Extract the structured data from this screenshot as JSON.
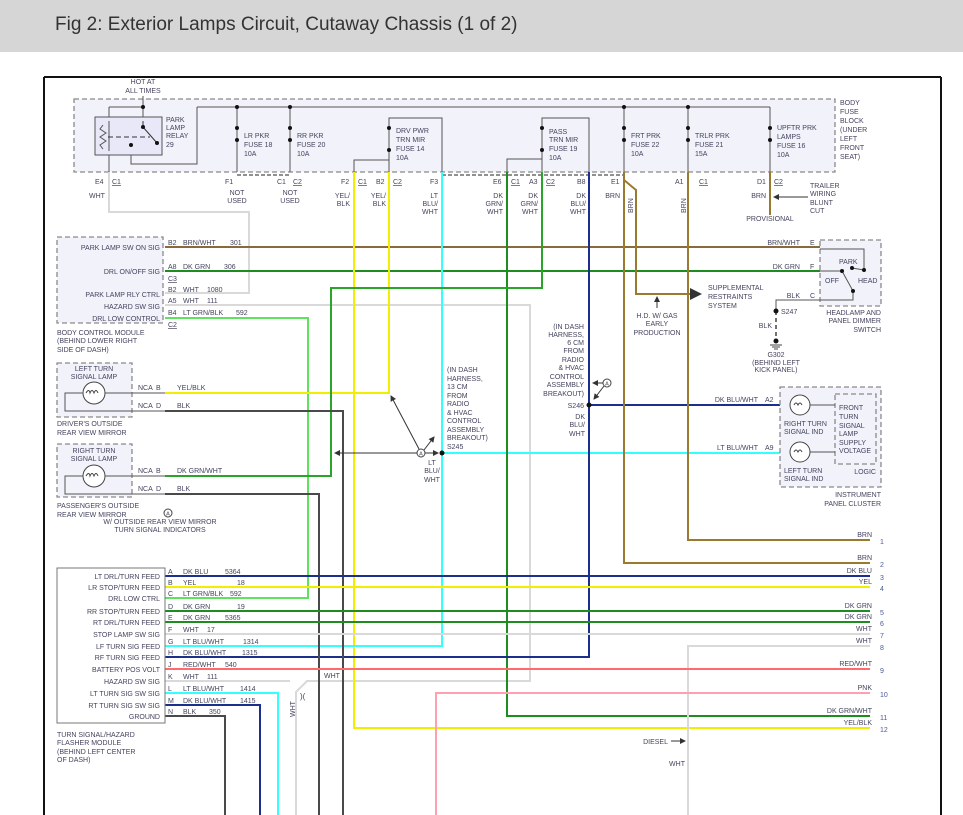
{
  "header": {
    "title": "Fig 2: Exterior Lamps Circuit, Cutaway Chassis (1 of 2)"
  },
  "colors": {
    "wht": "#d9d9d9",
    "yel": "#f2ee00",
    "lt_blu": "#33ffff",
    "dk_grn": "#1e8c1e",
    "lt_grn": "#5ee35e",
    "dk_blu": "#1c2f8c",
    "brn": "#9a7a2e",
    "brn_wht": "#8a6a3a",
    "blk": "#4a4a4a",
    "red_wht": "#ff6a6a",
    "pnk": "#ff9fb0"
  },
  "fuse_block": {
    "hot": [
      "HOT AT",
      "ALL TIMES"
    ],
    "name": [
      "BODY",
      "FUSE",
      "BLOCK",
      "(UNDER",
      "LEFT",
      "FRONT",
      "SEAT)"
    ],
    "relay": [
      "PARK",
      "LAMP",
      "RELAY",
      "29"
    ],
    "fuses": [
      [
        "LR PKR",
        "FUSE 18",
        "10A"
      ],
      [
        "RR PKR",
        "FUSE 20",
        "10A"
      ],
      [
        "DRV PWR",
        "TRN MIR",
        "FUSE 14",
        "10A"
      ],
      [
        "PASS",
        "TRN MIR",
        "FUSE 19",
        "10A"
      ],
      [
        "FRT PRK",
        "FUSE 22",
        "10A"
      ],
      [
        "TRLR PRK",
        "FUSE 21",
        "15A"
      ],
      [
        "UPFTR PRK",
        "LAMPS",
        "FUSE 16",
        "10A"
      ]
    ]
  },
  "terminals": [
    {
      "pin": "E4",
      "conn": "C1",
      "wire": [
        "WHT"
      ]
    },
    {
      "pin": "F1",
      "wire": [
        "NOT",
        "USED"
      ]
    },
    {
      "pin": "C1",
      "conn": "C2",
      "wire": [
        "NOT",
        "USED"
      ]
    },
    {
      "pin": "F2",
      "conn": "C1",
      "wire": [
        "YEL/",
        "BLK"
      ]
    },
    {
      "pin": "B2",
      "conn": "C2",
      "wire": [
        "YEL/",
        "BLK"
      ]
    },
    {
      "pin": "F3",
      "wire": [
        "LT",
        "BLU/",
        "WHT"
      ]
    },
    {
      "pin": "E6",
      "conn": "C1",
      "wire": [
        "DK",
        "GRN/",
        "WHT"
      ]
    },
    {
      "pin": "A3",
      "conn": "C2",
      "wire": [
        "DK",
        "GRN/",
        "WHT"
      ]
    },
    {
      "pin": "B8",
      "wire": [
        "DK",
        "BLU/",
        "WHT"
      ]
    },
    {
      "pin": "E1",
      "wire": [
        "BRN"
      ]
    },
    {
      "pin": "A1",
      "conn": "C1"
    },
    {
      "pin": "D1",
      "conn": "C2",
      "wire": [
        "BRN"
      ]
    }
  ],
  "brn_vertical": "BRN",
  "trailer": [
    "TRAILER",
    "WIRING",
    "BLUNT",
    "CUT"
  ],
  "provisional": "PROVISIONAL",
  "bcm": {
    "pins": [
      {
        "label": "PARK LAMP SW ON SIG",
        "pin": "B2",
        "wire": "BRN/WHT",
        "circuit": "301"
      },
      {
        "label": "DRL ON/OFF SIG",
        "pin": "A8",
        "wire": "DK GRN",
        "circuit": "306"
      },
      {
        "label": "PARK LAMP RLY CTRL",
        "pin": "B2",
        "wire": "WHT",
        "circuit": "1080"
      },
      {
        "label": "HAZARD SW SIG",
        "pin": "A5",
        "wire": "WHT",
        "circuit": "111"
      },
      {
        "label": "DRL LOW CONTROL",
        "pin": "B4",
        "wire": "LT GRN/BLK",
        "circuit": "592"
      }
    ],
    "connectors": [
      "C3",
      "C2"
    ],
    "name": [
      "BODY CONTROL MODULE",
      "(BEHIND LOWER RIGHT",
      "SIDE OF DASH)"
    ]
  },
  "switch": {
    "pins": [
      {
        "wire": "BRN/WHT",
        "pin": "E"
      },
      {
        "wire": "DK GRN",
        "pin": "F"
      },
      {
        "wire": "BLK",
        "pin": "C"
      }
    ],
    "positions": [
      "PARK",
      "OFF",
      "HEAD"
    ],
    "name": [
      "HEADLAMP AND",
      "PANEL DIMMER",
      "SWITCH"
    ]
  },
  "ground": {
    "splice": "S247",
    "wire": "BLK",
    "id": "G302",
    "location": [
      "(BEHIND LEFT",
      "KICK PANEL)"
    ]
  },
  "srs": [
    "SUPPLEMENTAL",
    "RESTRAINTS",
    "SYSTEM"
  ],
  "hd_gas": [
    "H.D. W/ GAS",
    "EARLY",
    "PRODUCTION"
  ],
  "s246": {
    "note": [
      "(IN DASH",
      "HARNESS,",
      "6 CM",
      "FROM",
      "RADIO",
      "& HVAC",
      "CONTROL",
      "ASSEMBLY",
      "BREAKOUT)"
    ],
    "id": "S246",
    "wire": [
      "DK",
      "BLU/",
      "WHT"
    ]
  },
  "s245": {
    "note": [
      "(IN DASH",
      "HARNESS,",
      "13 CM",
      "FROM",
      "RADIO",
      "& HVAC",
      "CONTROL",
      "ASSEMBLY",
      "BREAKOUT)"
    ],
    "id": "S245",
    "wire": [
      "LT",
      "BLU/",
      "WHT"
    ]
  },
  "option_marker": "A",
  "mirrors": {
    "driver": {
      "lamp": [
        "LEFT TURN",
        "SIGNAL LAMP"
      ],
      "pins": [
        {
          "conn": "NCA",
          "pin": "B",
          "wire": "YEL/BLK"
        },
        {
          "conn": "NCA",
          "pin": "D",
          "wire": "BLK"
        }
      ],
      "name": [
        "DRIVER'S OUTSIDE",
        "REAR VIEW MIRROR"
      ]
    },
    "passenger": {
      "lamp": [
        "RIGHT TURN",
        "SIGNAL LAMP"
      ],
      "pins": [
        {
          "conn": "NCA",
          "pin": "B",
          "wire": "DK GRN/WHT"
        },
        {
          "conn": "NCA",
          "pin": "D",
          "wire": "BLK"
        }
      ],
      "name": [
        "PASSENGER'S OUTSIDE",
        "REAR VIEW MIRROR"
      ]
    },
    "note": [
      "W/ OUTSIDE REAR VIEW MIRROR",
      "TURN SIGNAL INDICATORS"
    ]
  },
  "cluster": {
    "pins": [
      {
        "wire": "DK BLU/WHT",
        "pin": "A2"
      },
      {
        "wire": "LT BLU/WHT",
        "pin": "A9"
      }
    ],
    "right": [
      "RIGHT TURN",
      "SIGNAL IND"
    ],
    "left": [
      "LEFT TURN",
      "SIGNAL IND"
    ],
    "logic_box": [
      "FRONT",
      "TURN",
      "SIGNAL",
      "LAMP",
      "SUPPLY",
      "VOLTAGE"
    ],
    "logic": "LOGIC",
    "name": [
      "INSTRUMENT",
      "PANEL CLUSTER"
    ]
  },
  "flasher": {
    "pins": [
      {
        "label": "LT DRL/TURN FEED",
        "pin": "A",
        "wire": "DK BLU",
        "circuit": "5364"
      },
      {
        "label": "LR STOP/TURN FEED",
        "pin": "B",
        "wire": "YEL",
        "circuit": "18"
      },
      {
        "label": "DRL LOW CTRL",
        "pin": "C",
        "wire": "LT GRN/BLK",
        "circuit": "592"
      },
      {
        "label": "RR STOP/TURN FEED",
        "pin": "D",
        "wire": "DK GRN",
        "circuit": "19"
      },
      {
        "label": "RT DRL/TURN FEED",
        "pin": "E",
        "wire": "DK GRN",
        "circuit": "5365"
      },
      {
        "label": "STOP LAMP SW SIG",
        "pin": "F",
        "wire": "WHT",
        "circuit": "17"
      },
      {
        "label": "LF TURN SIG FEED",
        "pin": "G",
        "wire": "LT BLU/WHT",
        "circuit": "1314"
      },
      {
        "label": "RF TURN SIG FEED",
        "pin": "H",
        "wire": "DK BLU/WHT",
        "circuit": "1315"
      },
      {
        "label": "BATTERY POS VOLT",
        "pin": "J",
        "wire": "RED/WHT",
        "circuit": "540"
      },
      {
        "label": "HAZARD SW SIG",
        "pin": "K",
        "wire": "WHT",
        "circuit": "111"
      },
      {
        "label": "LT TURN SIG SW SIG",
        "pin": "L",
        "wire": "LT BLU/WHT",
        "circuit": "1414"
      },
      {
        "label": "RT TURN SIG SW SIG",
        "pin": "M",
        "wire": "DK BLU/WHT",
        "circuit": "1415"
      },
      {
        "label": "GROUND",
        "pin": "N",
        "wire": "BLK",
        "circuit": "350"
      }
    ],
    "name": [
      "TURN SIGNAL/HAZARD",
      "FLASHER MODULE",
      "(BEHIND LEFT CENTER",
      "OF DASH)"
    ]
  },
  "wht_label": "WHT",
  "continuations": [
    {
      "wire": "BRN",
      "num": "1"
    },
    {
      "wire": "BRN",
      "num": "2"
    },
    {
      "wire": "DK BLU",
      "num": "3"
    },
    {
      "wire": "YEL",
      "num": "4"
    },
    {
      "wire": "DK GRN",
      "num": "5"
    },
    {
      "wire": "DK GRN",
      "num": "6"
    },
    {
      "wire": "WHT",
      "num": "7"
    },
    {
      "wire": "WHT",
      "num": "8"
    },
    {
      "wire": "RED/WHT",
      "num": "9"
    },
    {
      "wire": "PNK",
      "num": "10"
    },
    {
      "wire": "DK GRN/WHT",
      "num": "11"
    },
    {
      "wire": "YEL/BLK",
      "num": "12"
    }
  ],
  "diesel": "DIESEL",
  "diesel_wire": "WHT"
}
